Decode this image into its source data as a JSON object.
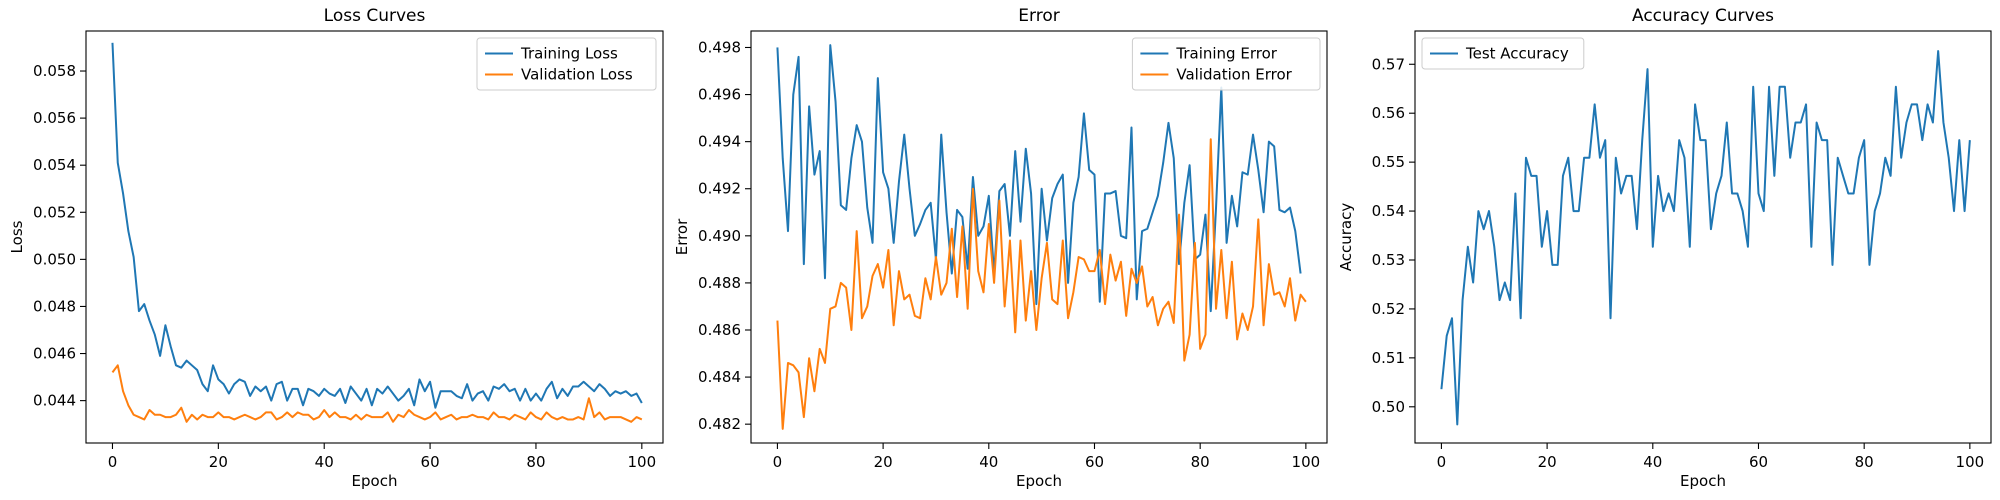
{
  "chart_data": [
    {
      "type": "line",
      "title": "Loss Curves",
      "xlabel": "Epoch",
      "ylabel": "Loss",
      "xlim": [
        -5,
        104
      ],
      "ylim": [
        0.0422,
        0.0597
      ],
      "xticks": [
        0,
        20,
        40,
        60,
        80,
        100
      ],
      "yticks": [
        0.044,
        0.046,
        0.048,
        0.05,
        0.052,
        0.054,
        0.056,
        0.058
      ],
      "ytick_labels": [
        "0.044",
        "0.046",
        "0.048",
        "0.050",
        "0.052",
        "0.054",
        "0.056",
        "0.058"
      ],
      "grid": false,
      "legend": "top-right",
      "series": [
        {
          "name": "Training Loss",
          "color": "#1f77b4",
          "values": [
            0.0592,
            0.0541,
            0.0528,
            0.0512,
            0.0501,
            0.0478,
            0.0481,
            0.0474,
            0.0468,
            0.0459,
            0.0472,
            0.0463,
            0.0455,
            0.0454,
            0.0457,
            0.0455,
            0.0453,
            0.0447,
            0.0444,
            0.0455,
            0.0449,
            0.0447,
            0.0443,
            0.0447,
            0.0449,
            0.0448,
            0.0442,
            0.0446,
            0.0444,
            0.0446,
            0.044,
            0.0447,
            0.0448,
            0.044,
            0.0445,
            0.0445,
            0.0438,
            0.0445,
            0.0444,
            0.0442,
            0.0445,
            0.0443,
            0.0442,
            0.0445,
            0.0439,
            0.0446,
            0.0443,
            0.044,
            0.0445,
            0.0438,
            0.0445,
            0.0443,
            0.0446,
            0.0443,
            0.044,
            0.0442,
            0.0445,
            0.0438,
            0.0449,
            0.0444,
            0.0448,
            0.0437,
            0.0444,
            0.0444,
            0.0444,
            0.0442,
            0.0441,
            0.0447,
            0.044,
            0.0443,
            0.0444,
            0.044,
            0.0446,
            0.0445,
            0.0447,
            0.0444,
            0.0445,
            0.044,
            0.0445,
            0.044,
            0.0443,
            0.044,
            0.0445,
            0.0448,
            0.0441,
            0.0445,
            0.0442,
            0.0446,
            0.0446,
            0.0448,
            0.0446,
            0.0444,
            0.0447,
            0.0445,
            0.0442,
            0.0444,
            0.0443,
            0.0444,
            0.0442,
            0.0443,
            0.0439
          ]
        },
        {
          "name": "Validation Loss",
          "color": "#ff7f0e",
          "values": [
            0.0452,
            0.0455,
            0.0444,
            0.0438,
            0.0434,
            0.0433,
            0.0432,
            0.0436,
            0.0434,
            0.0434,
            0.0433,
            0.0433,
            0.0434,
            0.0437,
            0.0431,
            0.0434,
            0.0432,
            0.0434,
            0.0433,
            0.0433,
            0.0435,
            0.0433,
            0.0433,
            0.0432,
            0.0433,
            0.0434,
            0.0433,
            0.0432,
            0.0433,
            0.0435,
            0.0435,
            0.0432,
            0.0433,
            0.0435,
            0.0433,
            0.0435,
            0.0434,
            0.0434,
            0.0432,
            0.0433,
            0.0436,
            0.0433,
            0.0435,
            0.0433,
            0.0433,
            0.0432,
            0.0434,
            0.0432,
            0.0434,
            0.0433,
            0.0433,
            0.0433,
            0.0435,
            0.0431,
            0.0434,
            0.0433,
            0.0436,
            0.0434,
            0.0433,
            0.0432,
            0.0433,
            0.0435,
            0.0432,
            0.0433,
            0.0434,
            0.0432,
            0.0433,
            0.0433,
            0.0434,
            0.0433,
            0.0433,
            0.0432,
            0.0435,
            0.0433,
            0.0433,
            0.0432,
            0.0434,
            0.0433,
            0.0432,
            0.0435,
            0.0433,
            0.0432,
            0.0435,
            0.0433,
            0.0432,
            0.0433,
            0.0432,
            0.0432,
            0.0433,
            0.0432,
            0.0441,
            0.0433,
            0.0435,
            0.0432,
            0.0433,
            0.0433,
            0.0433,
            0.0432,
            0.0431,
            0.0433,
            0.0432
          ]
        }
      ]
    },
    {
      "type": "line",
      "title": "Error",
      "xlabel": "Epoch",
      "ylabel": "Error",
      "xlim": [
        -5,
        104
      ],
      "ylim": [
        0.4812,
        0.4987
      ],
      "xticks": [
        0,
        20,
        40,
        60,
        80,
        100
      ],
      "yticks": [
        0.482,
        0.484,
        0.486,
        0.488,
        0.49,
        0.492,
        0.494,
        0.496,
        0.498
      ],
      "ytick_labels": [
        "0.482",
        "0.484",
        "0.486",
        "0.488",
        "0.490",
        "0.492",
        "0.494",
        "0.496",
        "0.498"
      ],
      "grid": false,
      "legend": "top-right",
      "series": [
        {
          "name": "Training Error",
          "color": "#1f77b4",
          "values": [
            0.498,
            0.4933,
            0.4902,
            0.496,
            0.4976,
            0.4888,
            0.4955,
            0.4926,
            0.4936,
            0.4882,
            0.4981,
            0.4957,
            0.4913,
            0.4911,
            0.4933,
            0.4947,
            0.494,
            0.4912,
            0.4897,
            0.4967,
            0.4927,
            0.492,
            0.4897,
            0.4923,
            0.4943,
            0.492,
            0.49,
            0.4905,
            0.4911,
            0.4914,
            0.489,
            0.4943,
            0.491,
            0.4884,
            0.4911,
            0.4908,
            0.4886,
            0.4925,
            0.49,
            0.4904,
            0.4917,
            0.4884,
            0.4919,
            0.4922,
            0.49,
            0.4936,
            0.4906,
            0.4937,
            0.4918,
            0.4871,
            0.492,
            0.4898,
            0.4916,
            0.4922,
            0.4926,
            0.488,
            0.4914,
            0.4925,
            0.4952,
            0.4928,
            0.4926,
            0.4872,
            0.4918,
            0.4918,
            0.4919,
            0.49,
            0.4899,
            0.4946,
            0.4873,
            0.4902,
            0.4903,
            0.491,
            0.4917,
            0.4931,
            0.4948,
            0.4933,
            0.4888,
            0.4914,
            0.493,
            0.489,
            0.4892,
            0.4909,
            0.4868,
            0.4912,
            0.4963,
            0.4897,
            0.4917,
            0.4904,
            0.4927,
            0.4926,
            0.4943,
            0.4928,
            0.491,
            0.494,
            0.4938,
            0.4911,
            0.491,
            0.4912,
            0.4902,
            0.4884
          ]
        },
        {
          "name": "Validation Error",
          "color": "#ff7f0e",
          "values": [
            0.4864,
            0.4818,
            0.4846,
            0.4845,
            0.4842,
            0.4823,
            0.4848,
            0.4834,
            0.4852,
            0.4846,
            0.4869,
            0.487,
            0.488,
            0.4878,
            0.486,
            0.4902,
            0.4865,
            0.487,
            0.4883,
            0.4888,
            0.4878,
            0.4894,
            0.4862,
            0.4885,
            0.4873,
            0.4875,
            0.4866,
            0.4865,
            0.4882,
            0.4873,
            0.4891,
            0.4875,
            0.488,
            0.4903,
            0.4874,
            0.4904,
            0.4869,
            0.492,
            0.4885,
            0.4876,
            0.4905,
            0.488,
            0.4915,
            0.487,
            0.4898,
            0.4859,
            0.4898,
            0.4864,
            0.4885,
            0.486,
            0.4882,
            0.4897,
            0.4873,
            0.4871,
            0.4898,
            0.4865,
            0.4876,
            0.4891,
            0.489,
            0.4885,
            0.4885,
            0.4894,
            0.4871,
            0.4892,
            0.4881,
            0.4889,
            0.4866,
            0.4886,
            0.488,
            0.4887,
            0.487,
            0.4874,
            0.4862,
            0.4869,
            0.4872,
            0.4863,
            0.4909,
            0.4847,
            0.4858,
            0.4897,
            0.4852,
            0.4858,
            0.4941,
            0.4869,
            0.4894,
            0.4865,
            0.4889,
            0.4856,
            0.4867,
            0.486,
            0.487,
            0.4907,
            0.4862,
            0.4888,
            0.4875,
            0.4876,
            0.487,
            0.4882,
            0.4864,
            0.4875,
            0.4872
          ]
        }
      ]
    },
    {
      "type": "line",
      "title": "Accuracy Curves",
      "xlabel": "Epoch",
      "ylabel": "Accuracy",
      "xlim": [
        -5,
        104
      ],
      "ylim": [
        0.4926,
        0.5768
      ],
      "xticks": [
        0,
        20,
        40,
        60,
        80,
        100
      ],
      "yticks": [
        0.5,
        0.51,
        0.52,
        0.53,
        0.54,
        0.55,
        0.56,
        0.57
      ],
      "ytick_labels": [
        "0.50",
        "0.51",
        "0.52",
        "0.53",
        "0.54",
        "0.55",
        "0.56",
        "0.57"
      ],
      "grid": false,
      "legend": "top-left",
      "series": [
        {
          "name": "Test Accuracy",
          "color": "#1f77b4",
          "values": [
            0.5036,
            0.5145,
            0.5181,
            0.4964,
            0.5218,
            0.5327,
            0.5254,
            0.54,
            0.5363,
            0.54,
            0.5327,
            0.5218,
            0.5254,
            0.5218,
            0.5436,
            0.5181,
            0.5509,
            0.5472,
            0.5472,
            0.5327,
            0.54,
            0.529,
            0.529,
            0.5472,
            0.5509,
            0.54,
            0.54,
            0.5509,
            0.5509,
            0.5618,
            0.5509,
            0.5545,
            0.5181,
            0.5509,
            0.5436,
            0.5472,
            0.5472,
            0.5363,
            0.5545,
            0.569,
            0.5327,
            0.5472,
            0.54,
            0.5436,
            0.54,
            0.5545,
            0.5509,
            0.5327,
            0.5618,
            0.5545,
            0.5545,
            0.5363,
            0.5436,
            0.5472,
            0.5581,
            0.5436,
            0.5436,
            0.54,
            0.5327,
            0.5654,
            0.5436,
            0.54,
            0.5654,
            0.5472,
            0.5654,
            0.5654,
            0.5509,
            0.5581,
            0.5581,
            0.5618,
            0.5327,
            0.5581,
            0.5545,
            0.5545,
            0.529,
            0.5509,
            0.5472,
            0.5436,
            0.5436,
            0.5509,
            0.5545,
            0.529,
            0.54,
            0.5436,
            0.5509,
            0.5472,
            0.5654,
            0.5509,
            0.5581,
            0.5618,
            0.5618,
            0.5545,
            0.5618,
            0.5581,
            0.5727,
            0.5581,
            0.5509,
            0.54,
            0.5545,
            0.54,
            0.5545
          ]
        }
      ]
    }
  ]
}
